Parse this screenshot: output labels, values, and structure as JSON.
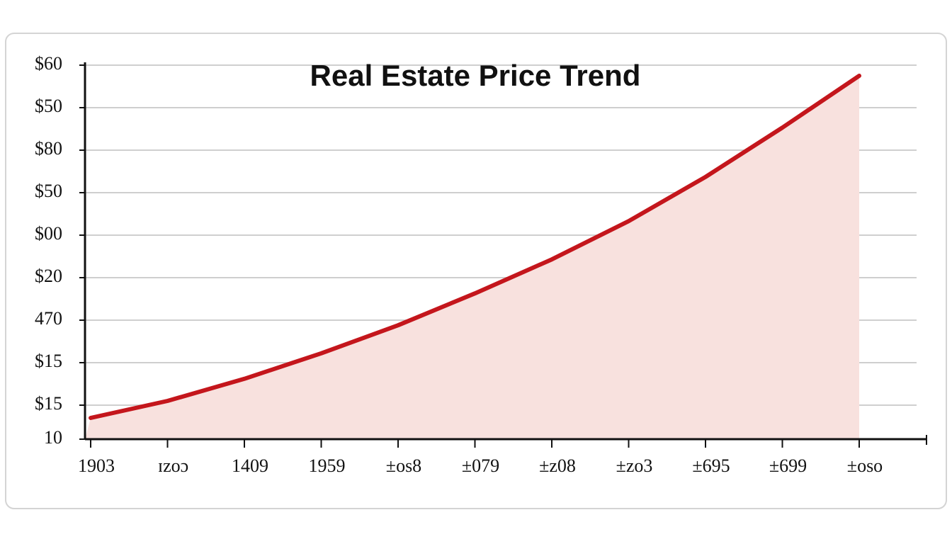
{
  "chart_data": {
    "type": "line",
    "title": "Real Estate Price Trend",
    "categories": [
      "1903",
      "ɪzoɔ",
      "1409",
      "1959",
      "±os8",
      "±079",
      "±z08",
      "±zo3",
      "±695",
      "±699",
      "±oso"
    ],
    "series": [
      {
        "color": "#c4161c",
        "values": [
          0.5,
          0.9,
          1.42,
          2.02,
          2.68,
          3.43,
          4.23,
          5.13,
          6.17,
          7.33,
          8.55
        ]
      }
    ],
    "y_axis_labels": [
      "10",
      "$15",
      "$15",
      "470",
      "$20",
      "$00",
      "$50",
      "$80",
      "$50",
      "$60"
    ],
    "yticks": [
      0,
      0.8,
      1.8,
      2.8,
      3.8,
      4.8,
      5.8,
      6.8,
      7.8,
      8.8
    ],
    "ylim": [
      0,
      9.3
    ],
    "grid": true,
    "area_color": "#f8e1de"
  }
}
